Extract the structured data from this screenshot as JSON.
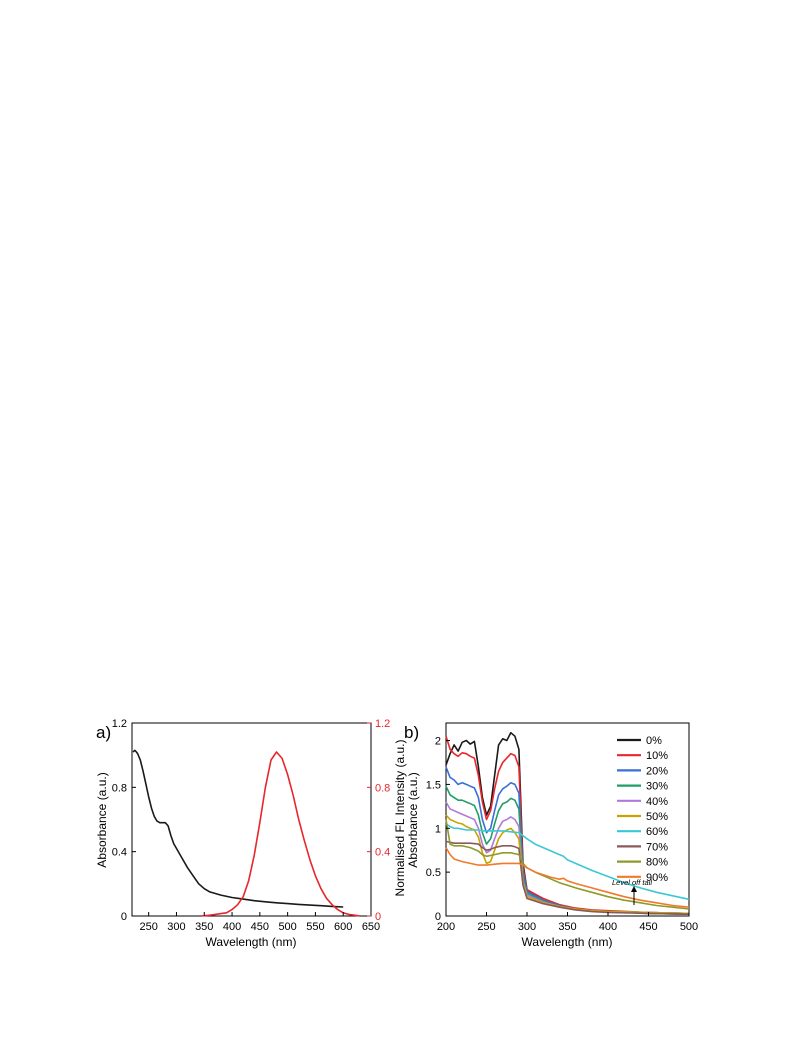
{
  "chart_data": [
    {
      "panel_label": "a)",
      "type": "line",
      "xlabel": "Wavelength (nm)",
      "ylabel_left": "Absorbance (a.u.)",
      "ylabel_right": "Normalised FL Intensity (a.u.)",
      "xlim": [
        220,
        650
      ],
      "ylim_left": [
        0,
        1.2
      ],
      "ylim_right": [
        0,
        1.2
      ],
      "x_ticks": [
        "250",
        "300",
        "350",
        "400",
        "450",
        "500",
        "550",
        "600",
        "650"
      ],
      "y_ticks_left": [
        "0",
        "0.4",
        "0.8",
        "1.2"
      ],
      "y_ticks_right": [
        "0",
        "0.4",
        "0.8",
        "1.2"
      ],
      "grid": false,
      "legend": "none",
      "series": [
        {
          "axis": "left",
          "color": "#1a1a1a",
          "x": [
            222,
            225,
            228,
            230,
            235,
            240,
            245,
            250,
            255,
            260,
            265,
            270,
            275,
            280,
            285,
            290,
            295,
            300,
            310,
            320,
            330,
            340,
            350,
            360,
            380,
            400,
            420,
            440,
            460,
            480,
            500,
            520,
            540,
            560,
            580,
            600
          ],
          "y": [
            1.02,
            1.03,
            1.02,
            1.01,
            0.97,
            0.9,
            0.82,
            0.74,
            0.67,
            0.62,
            0.59,
            0.58,
            0.58,
            0.58,
            0.56,
            0.5,
            0.45,
            0.42,
            0.36,
            0.3,
            0.25,
            0.2,
            0.17,
            0.15,
            0.13,
            0.115,
            0.105,
            0.095,
            0.088,
            0.082,
            0.077,
            0.072,
            0.068,
            0.064,
            0.06,
            0.056
          ]
        },
        {
          "axis": "right",
          "color": "#e8262b",
          "x": [
            345,
            360,
            370,
            380,
            390,
            400,
            410,
            420,
            430,
            440,
            450,
            460,
            470,
            480,
            490,
            500,
            510,
            520,
            530,
            540,
            550,
            560,
            570,
            580,
            590,
            600,
            610,
            620,
            630
          ],
          "y": [
            0.0,
            0.005,
            0.01,
            0.015,
            0.02,
            0.04,
            0.07,
            0.12,
            0.22,
            0.38,
            0.58,
            0.8,
            0.97,
            1.02,
            0.98,
            0.88,
            0.75,
            0.6,
            0.47,
            0.35,
            0.25,
            0.17,
            0.11,
            0.07,
            0.04,
            0.02,
            0.01,
            0.005,
            0.0
          ]
        }
      ]
    },
    {
      "panel_label": "b)",
      "type": "line",
      "xlabel": "Wavelength (nm)",
      "ylabel": "Absorbance (a.u.)",
      "xlim": [
        200,
        500
      ],
      "ylim": [
        0,
        2.2
      ],
      "x_ticks": [
        "200",
        "250",
        "300",
        "350",
        "400",
        "450",
        "500"
      ],
      "y_ticks": [
        "0",
        "0.5",
        "1",
        "1.5",
        "2"
      ],
      "grid": false,
      "legend": "top-right",
      "annotation": "Level off tail",
      "series": [
        {
          "name": "0%",
          "color": "#1a1a1a",
          "x": [
            200,
            205,
            210,
            215,
            220,
            225,
            230,
            235,
            240,
            245,
            250,
            255,
            260,
            265,
            270,
            275,
            280,
            285,
            290,
            295,
            300,
            320,
            340,
            360,
            380,
            400,
            450,
            500
          ],
          "y": [
            1.72,
            1.85,
            1.95,
            1.88,
            1.98,
            2.0,
            1.96,
            1.99,
            1.7,
            1.35,
            1.15,
            1.25,
            1.6,
            1.95,
            2.02,
            2.0,
            2.09,
            2.05,
            1.9,
            0.6,
            0.3,
            0.18,
            0.12,
            0.08,
            0.06,
            0.05,
            0.03,
            0.02
          ]
        },
        {
          "name": "10%",
          "color": "#e8262b",
          "x": [
            200,
            205,
            210,
            215,
            220,
            225,
            230,
            235,
            240,
            245,
            250,
            255,
            260,
            265,
            270,
            275,
            280,
            285,
            290,
            295,
            300,
            320,
            340,
            360,
            380,
            400,
            450,
            500
          ],
          "y": [
            2.05,
            1.9,
            1.85,
            1.82,
            1.86,
            1.85,
            1.82,
            1.8,
            1.6,
            1.3,
            1.1,
            1.2,
            1.45,
            1.65,
            1.75,
            1.8,
            1.85,
            1.83,
            1.7,
            0.55,
            0.3,
            0.2,
            0.13,
            0.09,
            0.07,
            0.06,
            0.04,
            0.03
          ]
        },
        {
          "name": "20%",
          "color": "#3a6fd8",
          "x": [
            200,
            205,
            210,
            215,
            220,
            225,
            230,
            235,
            240,
            245,
            250,
            255,
            260,
            265,
            270,
            275,
            280,
            285,
            290,
            295,
            300,
            320,
            340,
            360,
            380,
            400,
            450,
            500
          ],
          "y": [
            1.7,
            1.58,
            1.55,
            1.5,
            1.52,
            1.5,
            1.48,
            1.46,
            1.35,
            1.1,
            0.95,
            1.0,
            1.2,
            1.38,
            1.45,
            1.48,
            1.52,
            1.5,
            1.4,
            0.5,
            0.28,
            0.18,
            0.12,
            0.08,
            0.06,
            0.05,
            0.04,
            0.03
          ]
        },
        {
          "name": "30%",
          "color": "#1f9e6a",
          "x": [
            200,
            205,
            210,
            215,
            220,
            225,
            230,
            235,
            240,
            245,
            250,
            255,
            260,
            265,
            270,
            275,
            280,
            285,
            290,
            295,
            300,
            320,
            340,
            360,
            380,
            400,
            450,
            500
          ],
          "y": [
            1.48,
            1.38,
            1.35,
            1.32,
            1.32,
            1.3,
            1.28,
            1.26,
            1.15,
            0.95,
            0.82,
            0.88,
            1.05,
            1.2,
            1.28,
            1.3,
            1.34,
            1.32,
            1.22,
            0.45,
            0.26,
            0.17,
            0.11,
            0.08,
            0.06,
            0.05,
            0.04,
            0.03
          ]
        },
        {
          "name": "40%",
          "color": "#b07ad8",
          "x": [
            200,
            205,
            210,
            215,
            220,
            225,
            230,
            235,
            240,
            245,
            250,
            255,
            260,
            265,
            270,
            275,
            280,
            285,
            290,
            295,
            300,
            320,
            340,
            360,
            380,
            400,
            450,
            500
          ],
          "y": [
            1.3,
            1.22,
            1.2,
            1.18,
            1.16,
            1.14,
            1.12,
            1.1,
            1.0,
            0.82,
            0.72,
            0.75,
            0.88,
            1.0,
            1.08,
            1.1,
            1.13,
            1.1,
            1.02,
            0.4,
            0.24,
            0.16,
            0.11,
            0.08,
            0.06,
            0.05,
            0.04,
            0.03
          ]
        },
        {
          "name": "50%",
          "color": "#c9a300",
          "x": [
            200,
            205,
            210,
            215,
            220,
            225,
            230,
            235,
            240,
            245,
            250,
            255,
            260,
            265,
            270,
            275,
            280,
            285,
            290,
            295,
            300,
            320,
            340,
            360,
            380,
            400,
            450,
            500
          ],
          "y": [
            1.15,
            1.1,
            1.08,
            1.06,
            1.05,
            1.02,
            1.0,
            0.98,
            0.9,
            0.72,
            0.6,
            0.62,
            0.75,
            0.88,
            0.95,
            0.98,
            1.0,
            0.95,
            0.88,
            0.38,
            0.22,
            0.15,
            0.11,
            0.08,
            0.06,
            0.05,
            0.04,
            0.03
          ]
        },
        {
          "name": "60%",
          "color": "#3bc8d4",
          "x": [
            200,
            205,
            210,
            215,
            220,
            225,
            230,
            235,
            240,
            245,
            250,
            260,
            270,
            280,
            290,
            300,
            310,
            320,
            330,
            340,
            345,
            350,
            360,
            380,
            400,
            420,
            440,
            460,
            480,
            500
          ],
          "y": [
            1.05,
            1.02,
            1.0,
            1.0,
            0.99,
            0.98,
            0.98,
            0.98,
            0.98,
            0.97,
            0.97,
            0.97,
            0.97,
            0.96,
            0.95,
            0.88,
            0.82,
            0.78,
            0.74,
            0.7,
            0.68,
            0.64,
            0.6,
            0.52,
            0.45,
            0.38,
            0.32,
            0.27,
            0.23,
            0.19
          ]
        },
        {
          "name": "70%",
          "color": "#8a5a5a",
          "x": [
            200,
            210,
            220,
            230,
            240,
            245,
            250,
            255,
            260,
            265,
            270,
            275,
            280,
            285,
            290,
            295,
            300,
            320,
            340,
            360,
            380,
            400,
            450,
            500
          ],
          "y": [
            0.85,
            0.83,
            0.83,
            0.83,
            0.82,
            0.78,
            0.75,
            0.76,
            0.78,
            0.79,
            0.8,
            0.8,
            0.8,
            0.79,
            0.77,
            0.35,
            0.2,
            0.14,
            0.1,
            0.07,
            0.05,
            0.04,
            0.03,
            0.02
          ]
        },
        {
          "name": "80%",
          "color": "#8e9a2a",
          "x": [
            200,
            205,
            210,
            220,
            230,
            240,
            245,
            250,
            260,
            270,
            280,
            290,
            295,
            300,
            310,
            320,
            330,
            340,
            350,
            360,
            380,
            400,
            420,
            440,
            460,
            480,
            500
          ],
          "y": [
            1.1,
            0.82,
            0.8,
            0.8,
            0.78,
            0.74,
            0.7,
            0.68,
            0.7,
            0.72,
            0.72,
            0.7,
            0.6,
            0.55,
            0.5,
            0.46,
            0.42,
            0.38,
            0.35,
            0.32,
            0.27,
            0.22,
            0.18,
            0.15,
            0.12,
            0.1,
            0.08
          ]
        },
        {
          "name": "90%",
          "color": "#f07a2a",
          "x": [
            200,
            205,
            210,
            220,
            230,
            240,
            250,
            260,
            270,
            280,
            285,
            290,
            295,
            300,
            310,
            320,
            330,
            340,
            345,
            350,
            360,
            380,
            400,
            420,
            440,
            460,
            480,
            500
          ],
          "y": [
            0.78,
            0.7,
            0.65,
            0.62,
            0.6,
            0.58,
            0.58,
            0.59,
            0.6,
            0.6,
            0.6,
            0.6,
            0.58,
            0.55,
            0.5,
            0.47,
            0.44,
            0.42,
            0.43,
            0.4,
            0.37,
            0.32,
            0.27,
            0.22,
            0.18,
            0.15,
            0.12,
            0.1
          ]
        }
      ]
    }
  ]
}
